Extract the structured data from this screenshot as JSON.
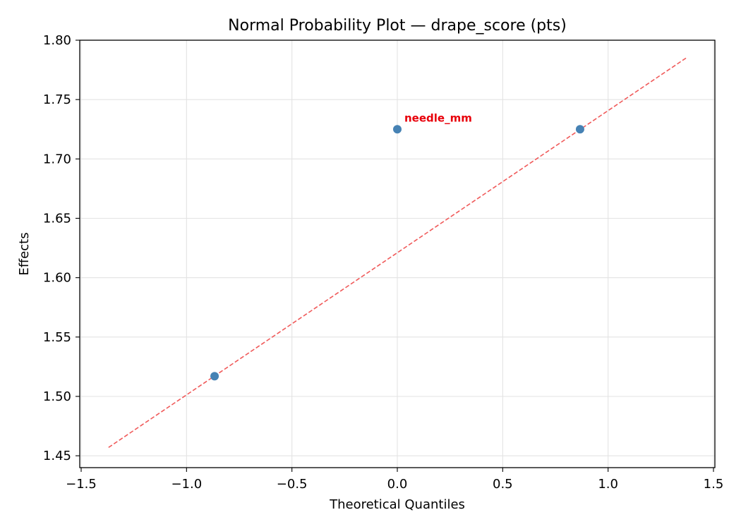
{
  "chart_data": {
    "type": "scatter",
    "title": "Normal Probability Plot — drape_score (pts)",
    "xlabel": "Theoretical Quantiles",
    "ylabel": "Effects",
    "xlim": [
      -1.5,
      1.5
    ],
    "ylim": [
      1.44,
      1.8
    ],
    "x_ticks": [
      -1.5,
      -1.0,
      -0.5,
      0.0,
      0.5,
      1.0,
      1.5
    ],
    "x_tick_labels": [
      "−1.5",
      "−1.0",
      "−0.5",
      "0.0",
      "0.5",
      "1.0",
      "1.5"
    ],
    "y_ticks": [
      1.45,
      1.5,
      1.55,
      1.6,
      1.65,
      1.7,
      1.75,
      1.8
    ],
    "y_tick_labels": [
      "1.45",
      "1.50",
      "1.55",
      "1.60",
      "1.65",
      "1.70",
      "1.75",
      "1.80"
    ],
    "grid": true,
    "series": [
      {
        "points": [
          {
            "x": -0.867,
            "y": 1.517
          },
          {
            "x": 0.0,
            "y": 1.725
          },
          {
            "x": 0.867,
            "y": 1.725
          }
        ],
        "color": "#4682b4"
      }
    ],
    "reference_line": {
      "style": "dashed",
      "color": "#f05a5a",
      "points": [
        {
          "x": -1.37,
          "y": 1.457
        },
        {
          "x": 1.37,
          "y": 1.785
        }
      ]
    },
    "annotations": [
      {
        "text": "needle_mm",
        "x": 0.0,
        "y": 1.725,
        "color": "#e8000b"
      }
    ]
  }
}
